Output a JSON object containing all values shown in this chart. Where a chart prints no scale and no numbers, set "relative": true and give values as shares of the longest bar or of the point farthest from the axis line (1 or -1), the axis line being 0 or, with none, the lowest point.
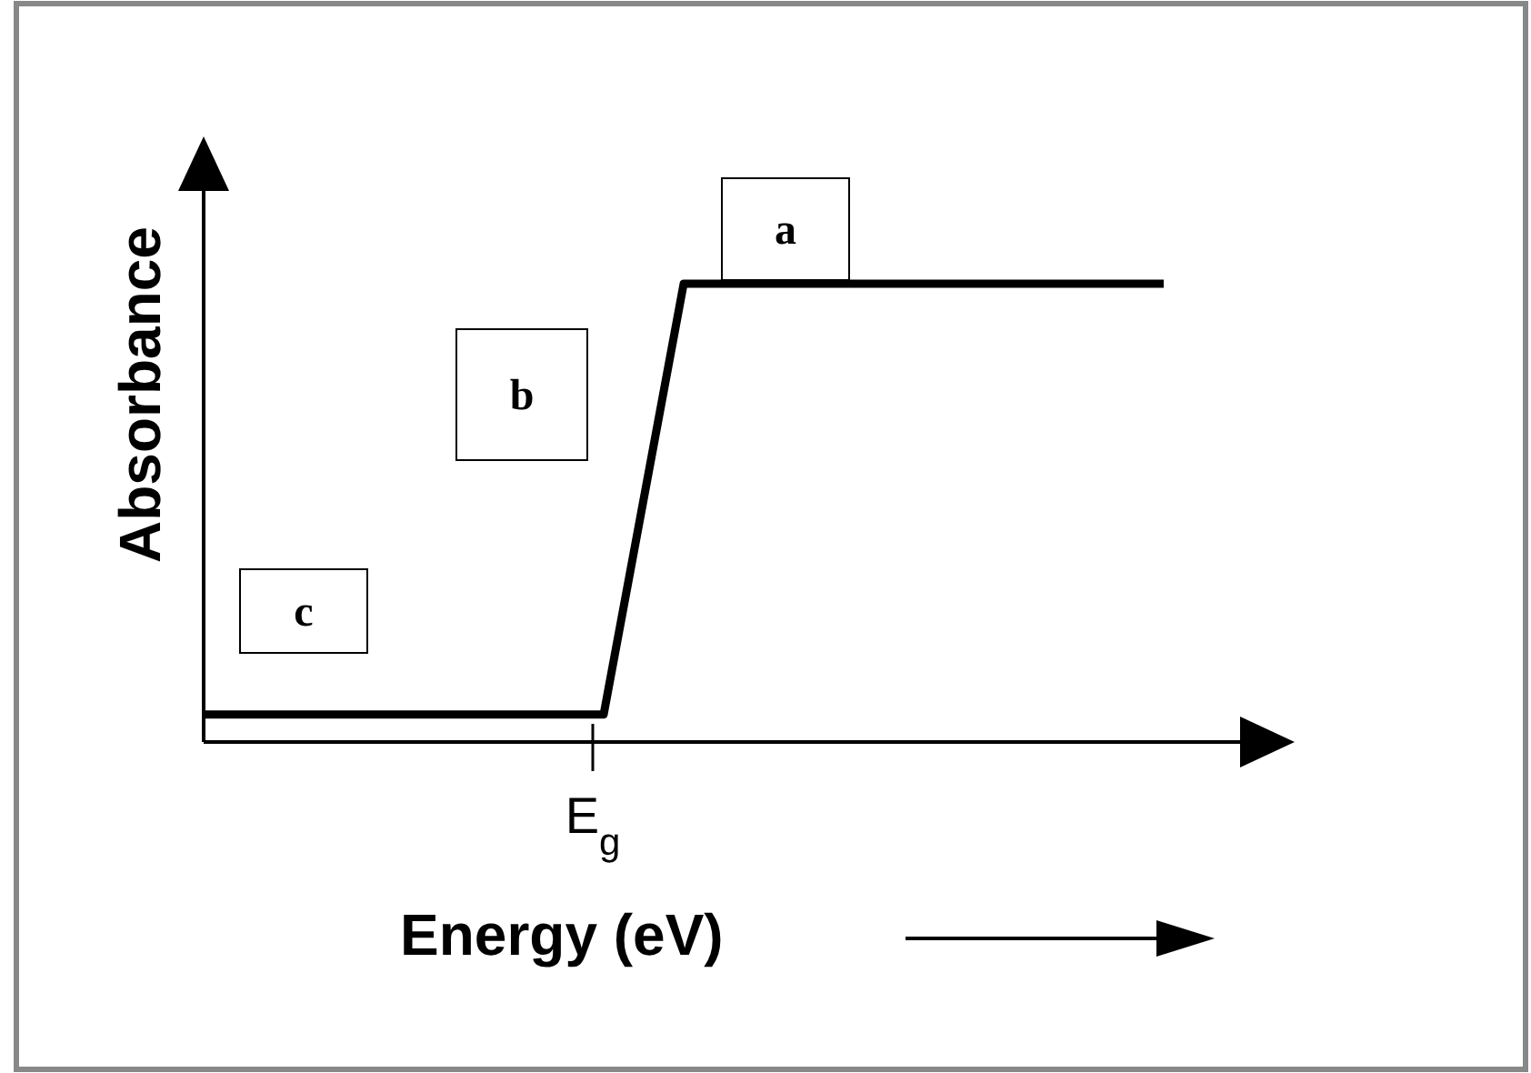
{
  "chart_data": {
    "type": "line",
    "xlabel": "Energy (eV)",
    "ylabel": "Absorbance",
    "relative": true,
    "categories": [
      null,
      null,
      null,
      null,
      null,
      null,
      null,
      null,
      null,
      null,
      null,
      null,
      null
    ],
    "series": [
      {
        "color": "#000000",
        "values": [
          0.06,
          0.06,
          0.06,
          0.06,
          0.06,
          0.06,
          1,
          1,
          1,
          1,
          1,
          1,
          1
        ]
      }
    ],
    "annotations": [
      "a",
      "b",
      "c",
      "E$_{g}$"
    ]
  }
}
